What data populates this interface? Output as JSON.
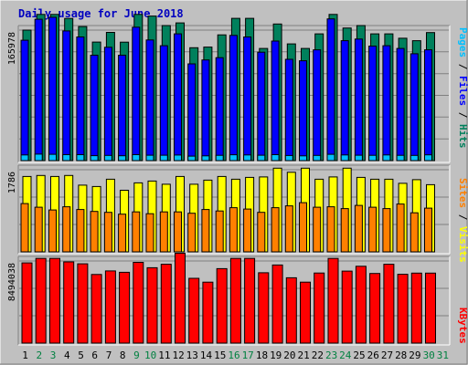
{
  "title": "Daily usage for June 2018",
  "colors": {
    "title": "#0000c0",
    "background": "#c0c0c0",
    "frame_dark": "#808080",
    "frame_light": "#ffffff",
    "grid": "#808080",
    "weekday_label": "#000000",
    "weekend_label": "#008040",
    "hits": "#00805c",
    "files": "#0000ff",
    "pages": "#00c0ff",
    "visits": "#ffff00",
    "sites": "#ff8000",
    "kbytes": "#ff0000"
  },
  "right_labels": {
    "top": [
      {
        "text": "Pages",
        "color": "#00c0ff"
      },
      {
        "text": " / ",
        "color": "#000000"
      },
      {
        "text": "Files",
        "color": "#0000ff"
      },
      {
        "text": " / ",
        "color": "#000000"
      },
      {
        "text": "Hits",
        "color": "#00805c"
      }
    ],
    "middle": [
      {
        "text": "Sites",
        "color": "#ff8000"
      },
      {
        "text": " / ",
        "color": "#000000"
      },
      {
        "text": "Visits",
        "color": "#ffff00"
      }
    ],
    "bottom": [
      {
        "text": "KBytes",
        "color": "#ff0000"
      }
    ]
  },
  "chart_data": {
    "type": "bar",
    "x": [
      "1",
      "2",
      "3",
      "4",
      "5",
      "6",
      "7",
      "8",
      "9",
      "10",
      "11",
      "12",
      "13",
      "14",
      "15",
      "16",
      "17",
      "18",
      "19",
      "20",
      "21",
      "22",
      "23",
      "24",
      "25",
      "26",
      "27",
      "28",
      "29",
      "30",
      "31"
    ],
    "weekend_days": [
      "2",
      "3",
      "9",
      "10",
      "16",
      "17",
      "23",
      "24",
      "30",
      "31"
    ],
    "panels": [
      {
        "name": "hits-files-pages",
        "ytick": "165978",
        "ymax": 165978,
        "series": [
          {
            "name": "Hits",
            "values": [
              165978,
              199200,
              203600,
              180800,
              170500,
              150800,
              163100,
              150600,
              188600,
              183900,
              171800,
              175100,
              143600,
              144400,
              160000,
              181000,
              181000,
              142700,
              173700,
              148400,
              142700,
              161200,
              197000,
              168600,
              171800,
              161200,
              161200,
              155700,
              152500,
              162900,
              0
            ]
          },
          {
            "name": "Files",
            "values": [
              153100,
              179800,
              182400,
              164900,
              157300,
              134100,
              144100,
              134100,
              169700,
              153400,
              146100,
              161200,
              123000,
              128000,
              130900,
              159200,
              157300,
              137900,
              152000,
              128800,
              127000,
              140900,
              180300,
              152500,
              154600,
              145700,
              146100,
              142700,
              135900,
              140900,
              0
            ]
          },
          {
            "name": "Pages",
            "values": [
              7200,
              8200,
              8000,
              7600,
              7600,
              6300,
              6600,
              6100,
              7600,
              6900,
              6900,
              7100,
              5700,
              6000,
              6700,
              7400,
              7200,
              6900,
              7600,
              6500,
              6000,
              6600,
              8000,
              7200,
              6900,
              6700,
              7200,
              6700,
              6600,
              7300,
              0
            ]
          }
        ]
      },
      {
        "name": "visits-sites",
        "ytick": "1786",
        "ymax": 1786,
        "series": [
          {
            "name": "Visits",
            "values": [
              1640,
              1660,
              1640,
              1660,
              1450,
              1420,
              1580,
              1340,
              1500,
              1540,
              1470,
              1640,
              1470,
              1560,
              1640,
              1580,
              1620,
              1630,
              1820,
              1730,
              1820,
              1580,
              1630,
              1820,
              1620,
              1580,
              1580,
              1490,
              1570,
              1460,
              0
            ]
          },
          {
            "name": "Sites",
            "values": [
              1050,
              970,
              910,
              980,
              920,
              880,
              860,
              820,
              870,
              830,
              870,
              870,
              840,
              920,
              890,
              960,
              930,
              860,
              960,
              1000,
              1070,
              970,
              980,
              940,
              1010,
              970,
              940,
              1040,
              850,
              950,
              0
            ]
          }
        ]
      },
      {
        "name": "kbytes",
        "ytick": "8494038",
        "ymax": 8494038,
        "series": [
          {
            "name": "KBytes",
            "values": [
              8300000,
              8760000,
              8760000,
              8400000,
              8200000,
              7100000,
              7470000,
              7320000,
              8350000,
              7800000,
              8150000,
              9300000,
              6700000,
              6300000,
              7700000,
              8760000,
              8760000,
              7280000,
              8080000,
              6760000,
              6300000,
              7250000,
              8760000,
              7450000,
              7950000,
              7200000,
              8150000,
              7120000,
              7240000,
              7240000,
              0
            ]
          }
        ]
      }
    ]
  }
}
